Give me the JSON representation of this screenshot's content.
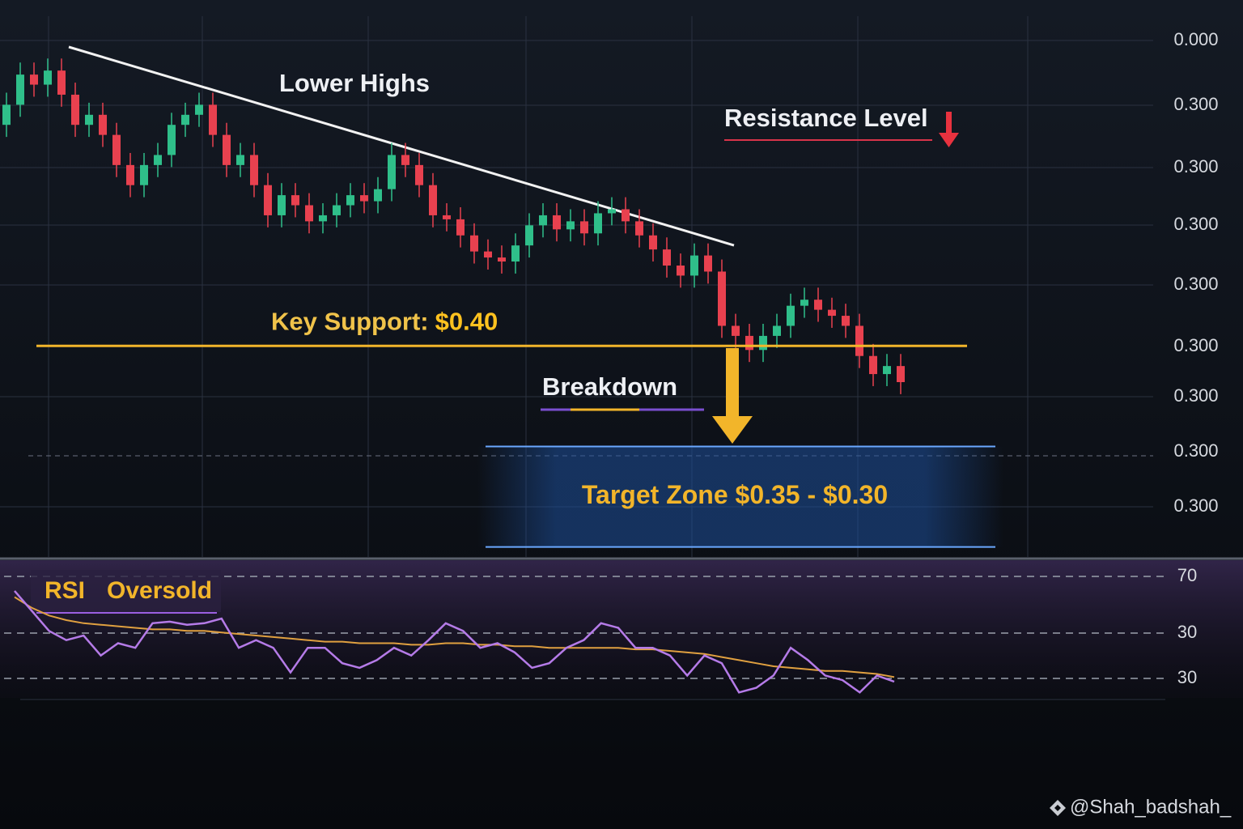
{
  "chart_data": {
    "type": "candlestick",
    "ylim": [
      0.295,
      0.556
    ],
    "price_axis_labels": [
      "0.000",
      "0.300",
      "0.300",
      "0.300",
      "0.300",
      "0.300",
      "0.300",
      "0.300",
      "0.300"
    ],
    "up_color": "#2fbf8a",
    "down_color": "#e8414f",
    "open": [
      0.51,
      0.52,
      0.535,
      0.53,
      0.537,
      0.525,
      0.51,
      0.515,
      0.505,
      0.49,
      0.48,
      0.49,
      0.495,
      0.51,
      0.515,
      0.52,
      0.505,
      0.49,
      0.495,
      0.48,
      0.465,
      0.475,
      0.47,
      0.462,
      0.465,
      0.47,
      0.475,
      0.472,
      0.478,
      0.495,
      0.49,
      0.48,
      0.465,
      0.463,
      0.455,
      0.447,
      0.444,
      0.442,
      0.45,
      0.46,
      0.465,
      0.458,
      0.462,
      0.456,
      0.466,
      0.468,
      0.462,
      0.455,
      0.448,
      0.44,
      0.435,
      0.445,
      0.437,
      0.41,
      0.405,
      0.398,
      0.405,
      0.41,
      0.42,
      0.423,
      0.418,
      0.415,
      0.41,
      0.395,
      0.386,
      0.39
    ],
    "high": [
      0.526,
      0.541,
      0.541,
      0.543,
      0.543,
      0.531,
      0.521,
      0.521,
      0.511,
      0.496,
      0.496,
      0.501,
      0.516,
      0.521,
      0.526,
      0.526,
      0.511,
      0.501,
      0.501,
      0.486,
      0.481,
      0.481,
      0.476,
      0.471,
      0.476,
      0.481,
      0.481,
      0.484,
      0.501,
      0.501,
      0.496,
      0.486,
      0.471,
      0.469,
      0.461,
      0.453,
      0.45,
      0.456,
      0.466,
      0.471,
      0.471,
      0.468,
      0.468,
      0.472,
      0.474,
      0.474,
      0.468,
      0.461,
      0.454,
      0.446,
      0.451,
      0.451,
      0.443,
      0.416,
      0.411,
      0.411,
      0.416,
      0.426,
      0.429,
      0.429,
      0.424,
      0.421,
      0.416,
      0.401,
      0.396,
      0.396
    ],
    "low": [
      0.504,
      0.514,
      0.524,
      0.524,
      0.519,
      0.504,
      0.504,
      0.499,
      0.484,
      0.474,
      0.474,
      0.484,
      0.489,
      0.504,
      0.509,
      0.499,
      0.484,
      0.484,
      0.474,
      0.459,
      0.459,
      0.464,
      0.456,
      0.456,
      0.459,
      0.464,
      0.466,
      0.466,
      0.472,
      0.484,
      0.474,
      0.459,
      0.457,
      0.449,
      0.441,
      0.438,
      0.436,
      0.436,
      0.444,
      0.454,
      0.452,
      0.452,
      0.45,
      0.45,
      0.46,
      0.456,
      0.449,
      0.442,
      0.434,
      0.429,
      0.429,
      0.431,
      0.404,
      0.399,
      0.392,
      0.392,
      0.399,
      0.404,
      0.414,
      0.412,
      0.409,
      0.404,
      0.389,
      0.38,
      0.38,
      0.376
    ],
    "close": [
      0.52,
      0.535,
      0.53,
      0.537,
      0.525,
      0.51,
      0.515,
      0.505,
      0.49,
      0.48,
      0.49,
      0.495,
      0.51,
      0.515,
      0.52,
      0.505,
      0.49,
      0.495,
      0.48,
      0.465,
      0.475,
      0.47,
      0.462,
      0.465,
      0.47,
      0.475,
      0.472,
      0.478,
      0.495,
      0.49,
      0.48,
      0.465,
      0.463,
      0.455,
      0.447,
      0.444,
      0.442,
      0.45,
      0.46,
      0.465,
      0.458,
      0.462,
      0.456,
      0.466,
      0.468,
      0.462,
      0.455,
      0.448,
      0.44,
      0.435,
      0.445,
      0.437,
      0.41,
      0.405,
      0.398,
      0.405,
      0.41,
      0.42,
      0.423,
      0.418,
      0.415,
      0.41,
      0.395,
      0.386,
      0.39,
      0.382
    ],
    "annotations": {
      "lower_highs": "Lower Highs",
      "resistance": "Resistance Level",
      "breakdown": "Breakdown"
    },
    "support": {
      "label": "Key Support:",
      "value": 0.4,
      "value_label": "$0.40"
    },
    "target_zone": {
      "label": "Target Zone $0.35 - $0.30",
      "values": [
        0.35,
        0.3
      ]
    },
    "rsi": {
      "title": "RSI",
      "label": "Oversold",
      "axis_labels": [
        "70",
        "30",
        "30"
      ],
      "ylim": [
        0,
        100
      ],
      "series": [
        {
          "color": "#b57be8",
          "values": [
            79,
            66,
            53,
            47,
            50,
            37,
            45,
            42,
            58,
            59,
            57,
            58,
            61,
            42,
            47,
            42,
            26,
            42,
            42,
            32,
            29,
            34,
            42,
            37,
            47,
            58,
            53,
            42,
            45,
            39,
            29,
            32,
            42,
            47,
            58,
            55,
            42,
            42,
            37,
            24,
            37,
            32,
            13,
            16,
            24,
            42,
            34,
            24,
            21,
            13,
            24,
            20
          ]
        },
        {
          "color": "#e0a040",
          "values": [
            75,
            68,
            63,
            60,
            58,
            57,
            56,
            55,
            54,
            54,
            53,
            53,
            52,
            51,
            50,
            49,
            48,
            47,
            46,
            46,
            45,
            45,
            45,
            44,
            44,
            45,
            45,
            44,
            44,
            43,
            43,
            42,
            42,
            42,
            42,
            42,
            41,
            41,
            40,
            39,
            38,
            36,
            34,
            32,
            30,
            29,
            28,
            27,
            27,
            26,
            25,
            23
          ]
        }
      ]
    }
  },
  "watermark": "@Shah_badshah_"
}
